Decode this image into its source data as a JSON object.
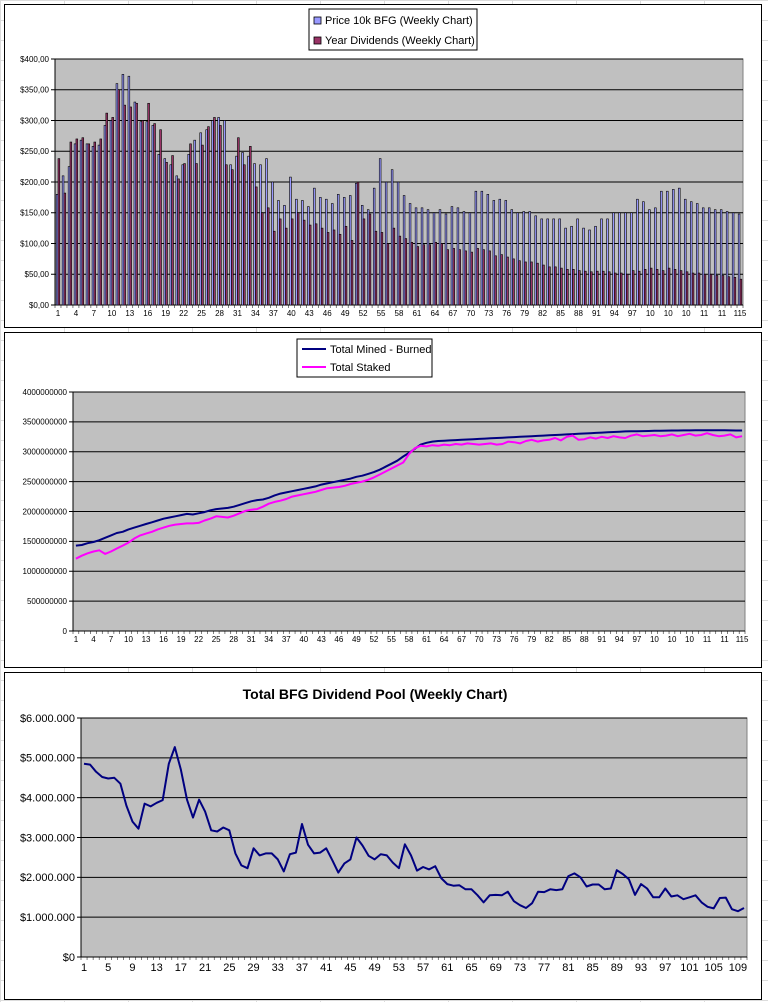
{
  "chart_data": [
    {
      "type": "bar",
      "title": "",
      "series": [
        {
          "name": "Price 10k BFG (Weekly Chart)",
          "color": "#9999ff",
          "values": [
            180,
            210,
            225,
            262,
            268,
            262,
            258,
            260,
            292,
            300,
            360,
            375,
            372,
            330,
            298,
            298,
            292,
            245,
            238,
            228,
            210,
            228,
            245,
            268,
            280,
            285,
            300,
            305,
            300,
            228,
            242,
            248,
            242,
            230,
            228,
            238,
            200,
            170,
            162,
            208,
            172,
            170,
            160,
            190,
            175,
            172,
            165,
            180,
            175,
            178,
            198,
            162,
            155,
            190,
            238,
            200,
            220,
            200,
            178,
            165,
            158,
            158,
            155,
            150,
            155,
            148,
            160,
            158,
            152,
            150,
            185,
            185,
            180,
            170,
            172,
            170,
            155,
            150,
            152,
            152,
            145,
            140,
            140,
            140,
            140,
            125,
            128,
            140,
            125,
            122,
            128,
            140,
            140,
            150,
            150,
            150,
            150,
            172,
            168,
            155,
            158,
            185,
            185,
            188,
            190,
            172,
            168,
            165,
            158,
            158,
            155,
            155,
            152,
            150,
            148
          ]
        },
        {
          "name": "Year Dividends (Weekly Chart)",
          "color": "#993366",
          "values": [
            238,
            182,
            265,
            270,
            272,
            262,
            265,
            270,
            312,
            305,
            350,
            325,
            322,
            328,
            300,
            328,
            295,
            285,
            232,
            243,
            205,
            230,
            262,
            230,
            260,
            290,
            305,
            292,
            228,
            220,
            272,
            228,
            258,
            192,
            150,
            158,
            120,
            140,
            125,
            140,
            150,
            138,
            130,
            132,
            125,
            118,
            122,
            115,
            128,
            105,
            200,
            140,
            148,
            120,
            118,
            100,
            125,
            112,
            108,
            102,
            95,
            98,
            98,
            102,
            100,
            90,
            92,
            90,
            88,
            86,
            92,
            90,
            88,
            80,
            82,
            78,
            75,
            72,
            70,
            70,
            68,
            65,
            62,
            62,
            60,
            58,
            58,
            56,
            55,
            54,
            55,
            55,
            54,
            52,
            52,
            50,
            56,
            55,
            58,
            60,
            58,
            56,
            60,
            58,
            56,
            54,
            52,
            52,
            50,
            50,
            48,
            48,
            46,
            45,
            42
          ]
        }
      ],
      "x_tick_labels": [
        "1",
        "4",
        "7",
        "10",
        "13",
        "16",
        "19",
        "22",
        "25",
        "28",
        "31",
        "34",
        "37",
        "40",
        "43",
        "46",
        "49",
        "52",
        "55",
        "58",
        "61",
        "64",
        "67",
        "70",
        "73",
        "76",
        "79",
        "82",
        "85",
        "88",
        "91",
        "94",
        "97",
        "10",
        "10",
        "10",
        "11",
        "11",
        "115"
      ],
      "y_tick_labels": [
        "$0,00",
        "$50,00",
        "$100,00",
        "$150,00",
        "$200,00",
        "$250,00",
        "$300,00",
        "$350,00",
        "$400,00"
      ],
      "ylim": [
        0,
        400
      ],
      "grid": true,
      "legend": "top-center"
    },
    {
      "type": "line",
      "title": "",
      "series": [
        {
          "name": "Total Mined - Burned",
          "color": "#000080",
          "values": [
            1430000000,
            1440000000,
            1470000000,
            1490000000,
            1520000000,
            1560000000,
            1600000000,
            1640000000,
            1660000000,
            1700000000,
            1730000000,
            1760000000,
            1790000000,
            1820000000,
            1850000000,
            1880000000,
            1900000000,
            1920000000,
            1940000000,
            1960000000,
            1950000000,
            1970000000,
            1990000000,
            2020000000,
            2040000000,
            2050000000,
            2060000000,
            2080000000,
            2110000000,
            2140000000,
            2170000000,
            2190000000,
            2200000000,
            2230000000,
            2270000000,
            2300000000,
            2320000000,
            2340000000,
            2360000000,
            2380000000,
            2400000000,
            2420000000,
            2450000000,
            2470000000,
            2490000000,
            2510000000,
            2530000000,
            2550000000,
            2580000000,
            2600000000,
            2630000000,
            2660000000,
            2700000000,
            2750000000,
            2800000000,
            2850000000,
            2920000000,
            2980000000,
            3050000000,
            3120000000,
            3150000000,
            3170000000,
            3180000000,
            3185000000,
            3190000000,
            3195000000,
            3200000000,
            3205000000,
            3210000000,
            3215000000,
            3220000000,
            3225000000,
            3230000000,
            3235000000,
            3240000000,
            3245000000,
            3250000000,
            3255000000,
            3260000000,
            3265000000,
            3270000000,
            3275000000,
            3280000000,
            3285000000,
            3290000000,
            3295000000,
            3300000000,
            3305000000,
            3310000000,
            3315000000,
            3320000000,
            3325000000,
            3330000000,
            3335000000,
            3340000000,
            3342000000,
            3344000000,
            3346000000,
            3348000000,
            3350000000,
            3352000000,
            3354000000,
            3355000000,
            3356000000,
            3357000000,
            3358000000,
            3359000000,
            3360000000,
            3360000000,
            3360000000,
            3360000000,
            3360000000,
            3358000000,
            3356000000,
            3355000000
          ]
        },
        {
          "name": "Total Staked",
          "color": "#ff00ff",
          "values": [
            1210000000,
            1260000000,
            1300000000,
            1330000000,
            1350000000,
            1290000000,
            1330000000,
            1380000000,
            1430000000,
            1480000000,
            1550000000,
            1600000000,
            1630000000,
            1660000000,
            1700000000,
            1730000000,
            1760000000,
            1780000000,
            1790000000,
            1800000000,
            1800000000,
            1810000000,
            1850000000,
            1880000000,
            1920000000,
            1910000000,
            1900000000,
            1930000000,
            1970000000,
            2010000000,
            2030000000,
            2040000000,
            2080000000,
            2130000000,
            2160000000,
            2180000000,
            2210000000,
            2250000000,
            2270000000,
            2290000000,
            2310000000,
            2330000000,
            2360000000,
            2390000000,
            2400000000,
            2410000000,
            2430000000,
            2460000000,
            2480000000,
            2500000000,
            2530000000,
            2570000000,
            2620000000,
            2670000000,
            2720000000,
            2770000000,
            2820000000,
            2960000000,
            3060000000,
            3100000000,
            3090000000,
            3110000000,
            3100000000,
            3120000000,
            3110000000,
            3130000000,
            3120000000,
            3140000000,
            3130000000,
            3120000000,
            3130000000,
            3140000000,
            3120000000,
            3130000000,
            3170000000,
            3160000000,
            3140000000,
            3180000000,
            3200000000,
            3170000000,
            3190000000,
            3200000000,
            3230000000,
            3190000000,
            3250000000,
            3270000000,
            3200000000,
            3210000000,
            3240000000,
            3220000000,
            3250000000,
            3230000000,
            3260000000,
            3240000000,
            3230000000,
            3270000000,
            3290000000,
            3260000000,
            3270000000,
            3280000000,
            3260000000,
            3270000000,
            3290000000,
            3260000000,
            3280000000,
            3300000000,
            3270000000,
            3280000000,
            3310000000,
            3280000000,
            3260000000,
            3270000000,
            3290000000,
            3240000000,
            3260000000
          ]
        }
      ],
      "x_tick_labels": [
        "1",
        "4",
        "7",
        "10",
        "13",
        "16",
        "19",
        "22",
        "25",
        "28",
        "31",
        "34",
        "37",
        "40",
        "43",
        "46",
        "49",
        "52",
        "55",
        "58",
        "61",
        "64",
        "67",
        "70",
        "73",
        "76",
        "79",
        "82",
        "85",
        "88",
        "91",
        "94",
        "97",
        "10",
        "10",
        "10",
        "11",
        "11",
        "115"
      ],
      "y_tick_labels": [
        "0",
        "500000000",
        "1000000000",
        "1500000000",
        "2000000000",
        "2500000000",
        "3000000000",
        "3500000000",
        "4000000000"
      ],
      "ylim": [
        0,
        4000000000
      ],
      "grid": true,
      "legend": "top-center"
    },
    {
      "type": "line",
      "title": "Total BFG Dividend Pool (Weekly Chart)",
      "series": [
        {
          "color": "#000080",
          "values": [
            4850000,
            4830000,
            4650000,
            4520000,
            4480000,
            4500000,
            4350000,
            3800000,
            3400000,
            3220000,
            3850000,
            3780000,
            3870000,
            3940000,
            4850000,
            5270000,
            4700000,
            3950000,
            3500000,
            3950000,
            3650000,
            3180000,
            3150000,
            3250000,
            3180000,
            2600000,
            2300000,
            2230000,
            2730000,
            2550000,
            2600000,
            2600000,
            2450000,
            2150000,
            2580000,
            2620000,
            3340000,
            2820000,
            2600000,
            2620000,
            2730000,
            2430000,
            2120000,
            2350000,
            2450000,
            3000000,
            2800000,
            2540000,
            2450000,
            2580000,
            2550000,
            2370000,
            2230000,
            2830000,
            2550000,
            2170000,
            2260000,
            2200000,
            2280000,
            1980000,
            1830000,
            1790000,
            1800000,
            1700000,
            1700000,
            1550000,
            1370000,
            1550000,
            1560000,
            1550000,
            1640000,
            1400000,
            1300000,
            1230000,
            1350000,
            1640000,
            1630000,
            1700000,
            1680000,
            1700000,
            2030000,
            2100000,
            2000000,
            1770000,
            1820000,
            1820000,
            1700000,
            1720000,
            2180000,
            2080000,
            1950000,
            1560000,
            1830000,
            1720000,
            1500000,
            1500000,
            1720000,
            1520000,
            1550000,
            1450000,
            1500000,
            1550000,
            1370000,
            1260000,
            1220000,
            1480000,
            1490000,
            1200000,
            1150000,
            1230000
          ]
        }
      ],
      "x_tick_labels": [
        "1",
        "5",
        "9",
        "13",
        "17",
        "21",
        "25",
        "29",
        "33",
        "37",
        "41",
        "45",
        "49",
        "53",
        "57",
        "61",
        "65",
        "69",
        "73",
        "77",
        "81",
        "85",
        "89",
        "93",
        "97",
        "101",
        "105",
        "109"
      ],
      "y_tick_labels": [
        "$0",
        "$1.000.000",
        "$2.000.000",
        "$3.000.000",
        "$4.000.000",
        "$5.000.000",
        "$6.000.000"
      ],
      "ylim": [
        0,
        6000000
      ],
      "grid": true
    }
  ]
}
